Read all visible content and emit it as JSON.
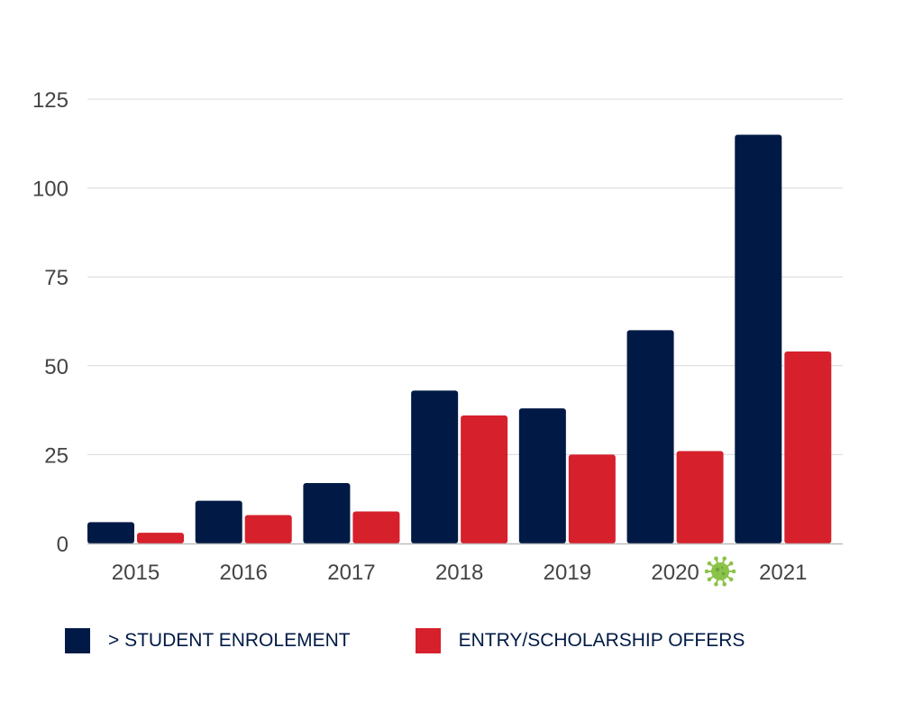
{
  "chart_data": {
    "type": "bar",
    "categories": [
      "2015",
      "2016",
      "2017",
      "2018",
      "2019",
      "2020",
      "2021"
    ],
    "series": [
      {
        "name": "> STUDENT ENROLEMENT",
        "color": "#001a45",
        "values": [
          6,
          12,
          17,
          43,
          38,
          60,
          115
        ]
      },
      {
        "name": "ENTRY/SCHOLARSHIP OFFERS",
        "color": "#d6202b",
        "values": [
          3,
          8,
          9,
          36,
          25,
          26,
          54
        ]
      }
    ],
    "y_ticks": [
      "0",
      "25",
      "50",
      "75",
      "100",
      "125"
    ],
    "ylim": [
      0,
      125
    ],
    "title": "",
    "xlabel": "",
    "ylabel": "",
    "grid": true,
    "legend_position": "bottom",
    "annotations": [
      {
        "category": "2020",
        "icon": "virus-icon",
        "color": "#8bc34a"
      }
    ]
  }
}
